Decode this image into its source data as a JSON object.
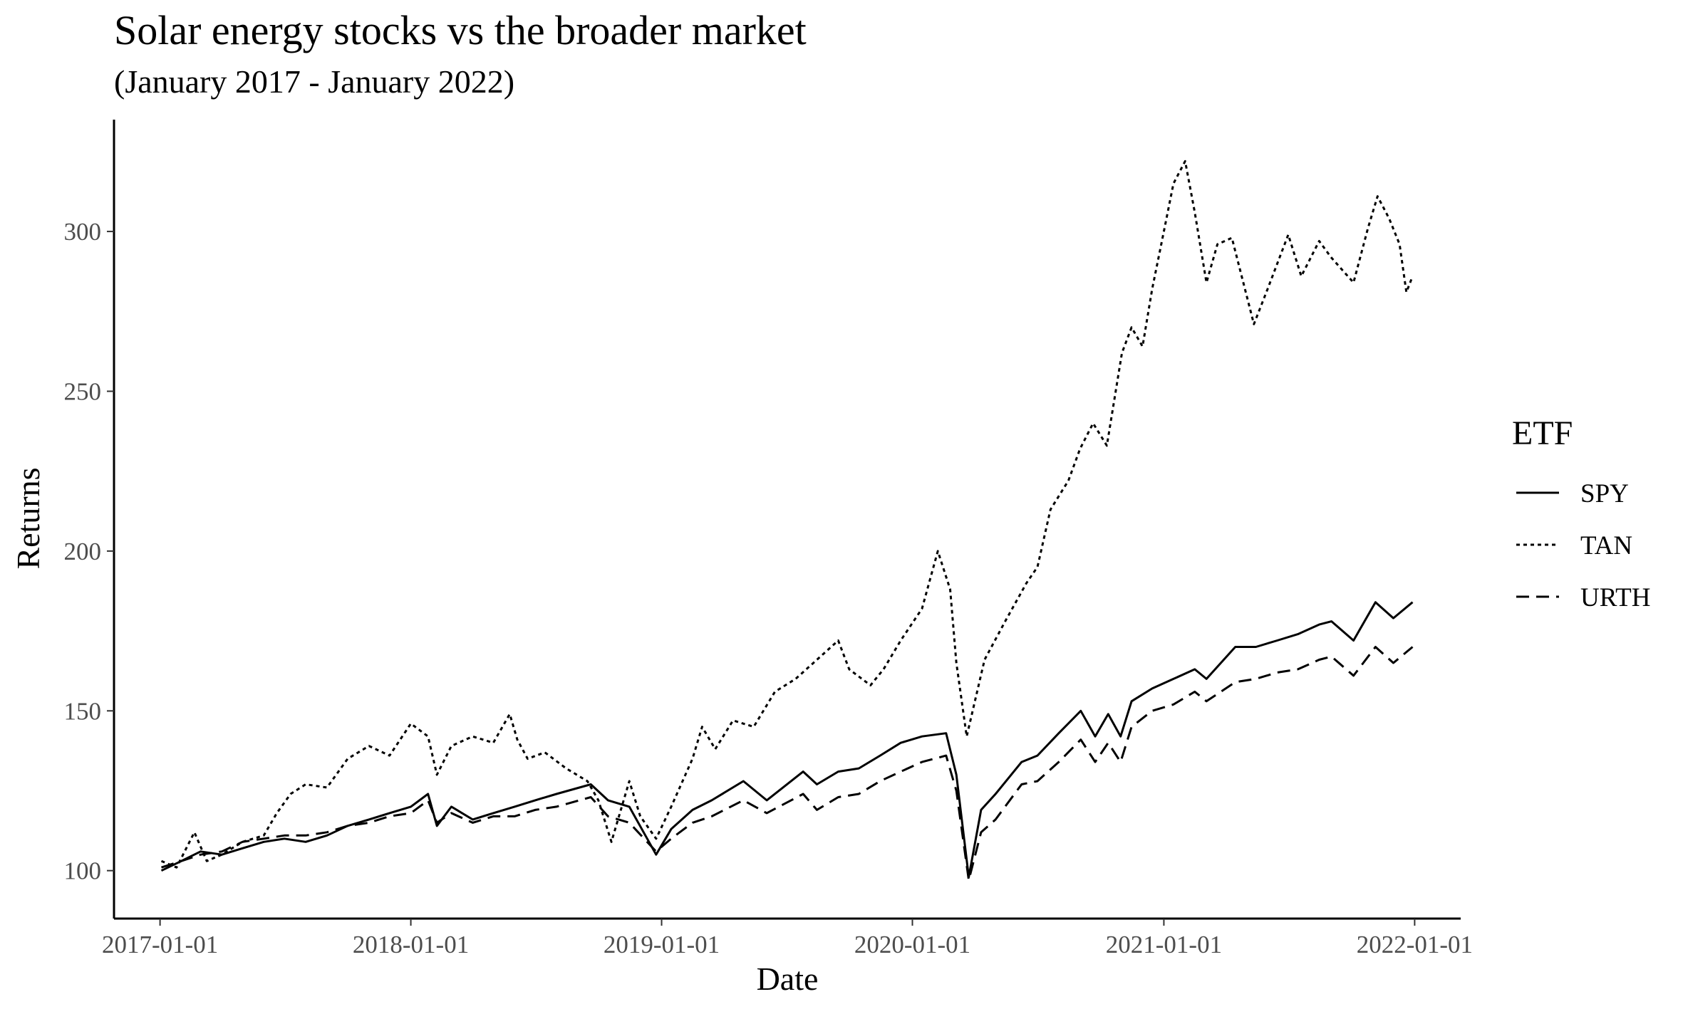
{
  "chart_data": {
    "type": "line",
    "title": "Solar energy stocks vs the broader market",
    "subtitle": "(January 2017 - January 2022)",
    "xlabel": "Date",
    "ylabel": "Returns",
    "x_ticks": [
      "2017-01-01",
      "2018-01-01",
      "2019-01-01",
      "2020-01-01",
      "2021-01-01",
      "2022-01-01"
    ],
    "y_ticks": [
      100,
      150,
      200,
      250,
      300
    ],
    "xlim": [
      "2016-10-26",
      "2022-03-09"
    ],
    "ylim": [
      85,
      335
    ],
    "grid": false,
    "legend": {
      "title": "ETF",
      "position": "right",
      "entries": [
        {
          "name": "SPY",
          "dash": "solid"
        },
        {
          "name": "TAN",
          "dash": "dotted"
        },
        {
          "name": "URTH",
          "dash": "dashed"
        }
      ]
    },
    "line_color": "#000000",
    "series": [
      {
        "name": "SPY",
        "dash": "solid",
        "points": [
          [
            "2017-01-03",
            100
          ],
          [
            "2017-02-01",
            103
          ],
          [
            "2017-03-01",
            106
          ],
          [
            "2017-04-01",
            105
          ],
          [
            "2017-05-01",
            107
          ],
          [
            "2017-06-01",
            109
          ],
          [
            "2017-07-01",
            110
          ],
          [
            "2017-08-01",
            109
          ],
          [
            "2017-09-01",
            111
          ],
          [
            "2017-10-01",
            114
          ],
          [
            "2017-11-01",
            116
          ],
          [
            "2017-12-01",
            118
          ],
          [
            "2018-01-01",
            120
          ],
          [
            "2018-01-26",
            124
          ],
          [
            "2018-02-08",
            114
          ],
          [
            "2018-03-01",
            120
          ],
          [
            "2018-04-01",
            116
          ],
          [
            "2018-05-01",
            118
          ],
          [
            "2018-06-01",
            120
          ],
          [
            "2018-07-01",
            122
          ],
          [
            "2018-08-01",
            124
          ],
          [
            "2018-09-20",
            127
          ],
          [
            "2018-10-15",
            122
          ],
          [
            "2018-11-15",
            120
          ],
          [
            "2018-12-24",
            105
          ],
          [
            "2019-01-15",
            113
          ],
          [
            "2019-02-15",
            119
          ],
          [
            "2019-03-15",
            122
          ],
          [
            "2019-04-30",
            128
          ],
          [
            "2019-06-03",
            122
          ],
          [
            "2019-07-26",
            131
          ],
          [
            "2019-08-15",
            127
          ],
          [
            "2019-09-15",
            131
          ],
          [
            "2019-10-15",
            132
          ],
          [
            "2019-11-15",
            136
          ],
          [
            "2019-12-15",
            140
          ],
          [
            "2020-01-15",
            142
          ],
          [
            "2020-02-19",
            143
          ],
          [
            "2020-03-05",
            130
          ],
          [
            "2020-03-23",
            98
          ],
          [
            "2020-04-10",
            119
          ],
          [
            "2020-05-01",
            124
          ],
          [
            "2020-06-08",
            134
          ],
          [
            "2020-07-01",
            136
          ],
          [
            "2020-08-01",
            143
          ],
          [
            "2020-09-02",
            150
          ],
          [
            "2020-09-23",
            142
          ],
          [
            "2020-10-12",
            149
          ],
          [
            "2020-10-30",
            142
          ],
          [
            "2020-11-15",
            153
          ],
          [
            "2020-12-15",
            157
          ],
          [
            "2021-01-15",
            160
          ],
          [
            "2021-02-15",
            163
          ],
          [
            "2021-03-04",
            160
          ],
          [
            "2021-04-15",
            170
          ],
          [
            "2021-05-15",
            170
          ],
          [
            "2021-06-15",
            172
          ],
          [
            "2021-07-15",
            174
          ],
          [
            "2021-08-15",
            177
          ],
          [
            "2021-09-02",
            178
          ],
          [
            "2021-10-04",
            172
          ],
          [
            "2021-11-05",
            184
          ],
          [
            "2021-12-01",
            179
          ],
          [
            "2021-12-29",
            184
          ]
        ]
      },
      {
        "name": "TAN",
        "dash": "dotted",
        "points": [
          [
            "2017-01-03",
            103
          ],
          [
            "2017-01-25",
            101
          ],
          [
            "2017-02-20",
            112
          ],
          [
            "2017-03-10",
            103
          ],
          [
            "2017-04-01",
            105
          ],
          [
            "2017-05-01",
            109
          ],
          [
            "2017-06-01",
            111
          ],
          [
            "2017-06-20",
            118
          ],
          [
            "2017-07-10",
            124
          ],
          [
            "2017-08-01",
            127
          ],
          [
            "2017-09-01",
            126
          ],
          [
            "2017-10-01",
            135
          ],
          [
            "2017-11-01",
            139
          ],
          [
            "2017-12-01",
            136
          ],
          [
            "2018-01-01",
            146
          ],
          [
            "2018-01-26",
            142
          ],
          [
            "2018-02-08",
            130
          ],
          [
            "2018-03-01",
            139
          ],
          [
            "2018-04-01",
            142
          ],
          [
            "2018-05-01",
            140
          ],
          [
            "2018-05-25",
            149
          ],
          [
            "2018-06-05",
            141
          ],
          [
            "2018-06-20",
            135
          ],
          [
            "2018-07-15",
            137
          ],
          [
            "2018-08-15",
            132
          ],
          [
            "2018-09-15",
            128
          ],
          [
            "2018-10-01",
            122
          ],
          [
            "2018-10-20",
            109
          ],
          [
            "2018-11-15",
            128
          ],
          [
            "2018-12-01",
            117
          ],
          [
            "2018-12-24",
            110
          ],
          [
            "2019-01-15",
            120
          ],
          [
            "2019-02-15",
            135
          ],
          [
            "2019-03-01",
            145
          ],
          [
            "2019-03-20",
            138
          ],
          [
            "2019-04-15",
            147
          ],
          [
            "2019-05-15",
            145
          ],
          [
            "2019-06-15",
            156
          ],
          [
            "2019-07-15",
            160
          ],
          [
            "2019-08-15",
            166
          ],
          [
            "2019-09-15",
            172
          ],
          [
            "2019-10-01",
            163
          ],
          [
            "2019-11-01",
            158
          ],
          [
            "2019-11-20",
            163
          ],
          [
            "2019-12-15",
            172
          ],
          [
            "2020-01-15",
            182
          ],
          [
            "2020-02-07",
            200
          ],
          [
            "2020-02-25",
            188
          ],
          [
            "2020-03-05",
            165
          ],
          [
            "2020-03-20",
            142
          ],
          [
            "2020-04-15",
            166
          ],
          [
            "2020-05-15",
            178
          ],
          [
            "2020-06-15",
            190
          ],
          [
            "2020-07-01",
            195
          ],
          [
            "2020-07-20",
            213
          ],
          [
            "2020-08-15",
            222
          ],
          [
            "2020-09-01",
            232
          ],
          [
            "2020-09-20",
            240
          ],
          [
            "2020-10-10",
            233
          ],
          [
            "2020-11-01",
            262
          ],
          [
            "2020-11-15",
            270
          ],
          [
            "2020-12-01",
            264
          ],
          [
            "2020-12-15",
            282
          ],
          [
            "2021-01-01",
            300
          ],
          [
            "2021-01-15",
            315
          ],
          [
            "2021-02-01",
            322
          ],
          [
            "2021-02-15",
            306
          ],
          [
            "2021-03-04",
            284
          ],
          [
            "2021-03-20",
            296
          ],
          [
            "2021-04-10",
            298
          ],
          [
            "2021-05-12",
            271
          ],
          [
            "2021-06-01",
            282
          ],
          [
            "2021-07-01",
            299
          ],
          [
            "2021-07-20",
            286
          ],
          [
            "2021-08-15",
            297
          ],
          [
            "2021-09-01",
            292
          ],
          [
            "2021-10-04",
            284
          ],
          [
            "2021-10-25",
            301
          ],
          [
            "2021-11-08",
            311
          ],
          [
            "2021-11-25",
            304
          ],
          [
            "2021-12-10",
            296
          ],
          [
            "2021-12-20",
            281
          ],
          [
            "2021-12-29",
            286
          ]
        ]
      },
      {
        "name": "URTH",
        "dash": "dashed",
        "points": [
          [
            "2017-01-03",
            101
          ],
          [
            "2017-02-01",
            103
          ],
          [
            "2017-03-01",
            105
          ],
          [
            "2017-04-01",
            106
          ],
          [
            "2017-05-01",
            109
          ],
          [
            "2017-06-01",
            110
          ],
          [
            "2017-07-01",
            111
          ],
          [
            "2017-08-01",
            111
          ],
          [
            "2017-09-01",
            112
          ],
          [
            "2017-10-01",
            114
          ],
          [
            "2017-11-01",
            115
          ],
          [
            "2017-12-01",
            117
          ],
          [
            "2018-01-01",
            118
          ],
          [
            "2018-01-26",
            122
          ],
          [
            "2018-02-08",
            115
          ],
          [
            "2018-03-01",
            118
          ],
          [
            "2018-04-01",
            115
          ],
          [
            "2018-05-01",
            117
          ],
          [
            "2018-06-01",
            117
          ],
          [
            "2018-07-01",
            119
          ],
          [
            "2018-08-01",
            120
          ],
          [
            "2018-09-20",
            123
          ],
          [
            "2018-10-15",
            117
          ],
          [
            "2018-11-15",
            115
          ],
          [
            "2018-12-24",
            106
          ],
          [
            "2019-01-15",
            110
          ],
          [
            "2019-02-15",
            115
          ],
          [
            "2019-03-15",
            117
          ],
          [
            "2019-04-30",
            122
          ],
          [
            "2019-06-03",
            118
          ],
          [
            "2019-07-26",
            124
          ],
          [
            "2019-08-15",
            119
          ],
          [
            "2019-09-15",
            123
          ],
          [
            "2019-10-15",
            124
          ],
          [
            "2019-11-15",
            128
          ],
          [
            "2019-12-15",
            131
          ],
          [
            "2020-01-15",
            134
          ],
          [
            "2020-02-19",
            136
          ],
          [
            "2020-03-05",
            125
          ],
          [
            "2020-03-23",
            97
          ],
          [
            "2020-04-10",
            112
          ],
          [
            "2020-05-01",
            116
          ],
          [
            "2020-06-08",
            127
          ],
          [
            "2020-07-01",
            128
          ],
          [
            "2020-08-01",
            134
          ],
          [
            "2020-09-02",
            141
          ],
          [
            "2020-09-23",
            134
          ],
          [
            "2020-10-12",
            140
          ],
          [
            "2020-10-30",
            134
          ],
          [
            "2020-11-15",
            145
          ],
          [
            "2020-12-15",
            150
          ],
          [
            "2021-01-15",
            152
          ],
          [
            "2021-02-15",
            156
          ],
          [
            "2021-03-04",
            153
          ],
          [
            "2021-04-15",
            159
          ],
          [
            "2021-05-15",
            160
          ],
          [
            "2021-06-15",
            162
          ],
          [
            "2021-07-15",
            163
          ],
          [
            "2021-08-15",
            166
          ],
          [
            "2021-09-02",
            167
          ],
          [
            "2021-10-04",
            161
          ],
          [
            "2021-11-05",
            170
          ],
          [
            "2021-12-01",
            165
          ],
          [
            "2021-12-29",
            170
          ]
        ]
      }
    ]
  }
}
